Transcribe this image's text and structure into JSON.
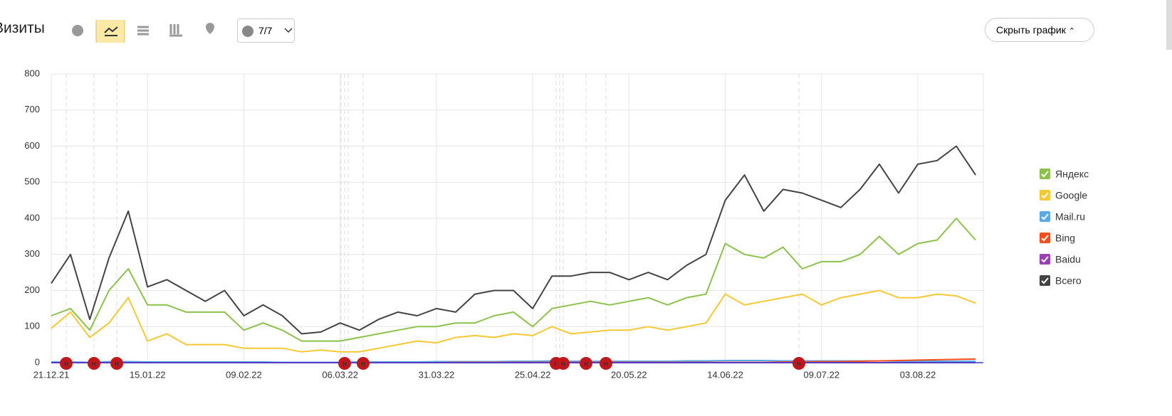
{
  "page": {
    "title": "Визиты",
    "filter_label": "7/7",
    "hide_button": "Скрыть график"
  },
  "chart_data": {
    "type": "line",
    "x": [
      "21.12.21",
      "26.12.21",
      "31.12.21",
      "05.01.22",
      "10.01.22",
      "15.01.22",
      "20.01.22",
      "25.01.22",
      "30.01.22",
      "04.02.22",
      "09.02.22",
      "14.02.22",
      "19.02.22",
      "24.02.22",
      "01.03.22",
      "06.03.22",
      "11.03.22",
      "16.03.22",
      "21.03.22",
      "26.03.22",
      "31.03.22",
      "05.04.22",
      "10.04.22",
      "15.04.22",
      "20.04.22",
      "25.04.22",
      "30.04.22",
      "05.05.22",
      "10.05.22",
      "15.05.22",
      "20.05.22",
      "25.05.22",
      "30.05.22",
      "04.06.22",
      "09.06.22",
      "14.06.22",
      "19.06.22",
      "24.06.22",
      "29.06.22",
      "04.07.22",
      "09.07.22",
      "14.07.22",
      "19.07.22",
      "24.07.22",
      "29.07.22",
      "03.08.22",
      "08.08.22",
      "13.08.22",
      "18.08.22"
    ],
    "xticks": [
      "21.12.21",
      "15.01.22",
      "09.02.22",
      "06.03.22",
      "31.03.22",
      "25.04.22",
      "20.05.22",
      "14.06.22",
      "09.07.22",
      "03.08.22"
    ],
    "xtick_colors": [
      "#333",
      "#c0171d",
      "#333",
      "#c0171d",
      "#333",
      "#333",
      "#333",
      "#333",
      "#c0171d",
      "#333"
    ],
    "ylim": [
      0,
      800
    ],
    "yticks": [
      0,
      100,
      200,
      300,
      400,
      500,
      600,
      700,
      800
    ],
    "grid": true,
    "series": [
      {
        "name": "Яндекс",
        "color": "#8bc34a",
        "values": [
          130,
          150,
          90,
          200,
          260,
          160,
          160,
          140,
          140,
          140,
          90,
          110,
          90,
          60,
          60,
          60,
          70,
          80,
          90,
          100,
          100,
          110,
          110,
          130,
          140,
          100,
          150,
          160,
          170,
          160,
          170,
          180,
          160,
          180,
          190,
          330,
          300,
          290,
          320,
          260,
          280,
          280,
          300,
          350,
          300,
          330,
          340,
          400,
          340
        ]
      },
      {
        "name": "Google",
        "color": "#f6c833",
        "values": [
          95,
          140,
          70,
          110,
          180,
          60,
          80,
          50,
          50,
          50,
          40,
          40,
          40,
          30,
          35,
          30,
          30,
          40,
          50,
          60,
          55,
          70,
          75,
          70,
          80,
          75,
          100,
          80,
          85,
          90,
          90,
          100,
          90,
          100,
          110,
          190,
          160,
          170,
          180,
          190,
          160,
          180,
          190,
          200,
          180,
          180,
          190,
          185,
          165
        ]
      },
      {
        "name": "Mail.ru",
        "color": "#5aa9e6",
        "values": [
          2,
          2,
          1,
          3,
          3,
          2,
          2,
          2,
          2,
          2,
          2,
          2,
          1,
          1,
          1,
          1,
          2,
          2,
          2,
          2,
          3,
          3,
          3,
          3,
          4,
          4,
          5,
          4,
          4,
          4,
          4,
          4,
          4,
          5,
          5,
          6,
          6,
          6,
          5,
          5,
          5,
          5,
          5,
          5,
          4,
          4,
          4,
          4,
          4
        ]
      },
      {
        "name": "Bing",
        "color": "#f24e1e",
        "values": [
          0,
          0,
          0,
          0,
          0,
          0,
          0,
          0,
          0,
          0,
          0,
          0,
          0,
          0,
          0,
          0,
          0,
          0,
          0,
          0,
          0,
          1,
          1,
          1,
          1,
          1,
          1,
          1,
          1,
          1,
          1,
          1,
          1,
          1,
          1,
          1,
          1,
          1,
          2,
          2,
          3,
          3,
          4,
          5,
          6,
          7,
          8,
          9,
          10
        ]
      },
      {
        "name": "Baidu",
        "color": "#9c3fb5",
        "values": [
          0,
          0,
          0,
          0,
          0,
          0,
          0,
          0,
          0,
          0,
          0,
          0,
          0,
          0,
          0,
          0,
          0,
          0,
          0,
          0,
          0,
          0,
          0,
          0,
          0,
          0,
          0,
          0,
          0,
          0,
          0,
          0,
          0,
          0,
          0,
          0,
          0,
          0,
          0,
          0,
          0,
          0,
          0,
          0,
          0,
          0,
          0,
          0,
          0
        ]
      },
      {
        "name": "Всего",
        "color": "#444444",
        "values": [
          220,
          300,
          120,
          290,
          420,
          210,
          230,
          200,
          170,
          200,
          130,
          160,
          130,
          80,
          85,
          110,
          90,
          120,
          140,
          130,
          150,
          140,
          190,
          200,
          200,
          150,
          240,
          240,
          250,
          250,
          230,
          250,
          230,
          270,
          300,
          450,
          520,
          420,
          480,
          470,
          450,
          430,
          480,
          550,
          470,
          550,
          560,
          600,
          520
        ]
      }
    ]
  }
}
